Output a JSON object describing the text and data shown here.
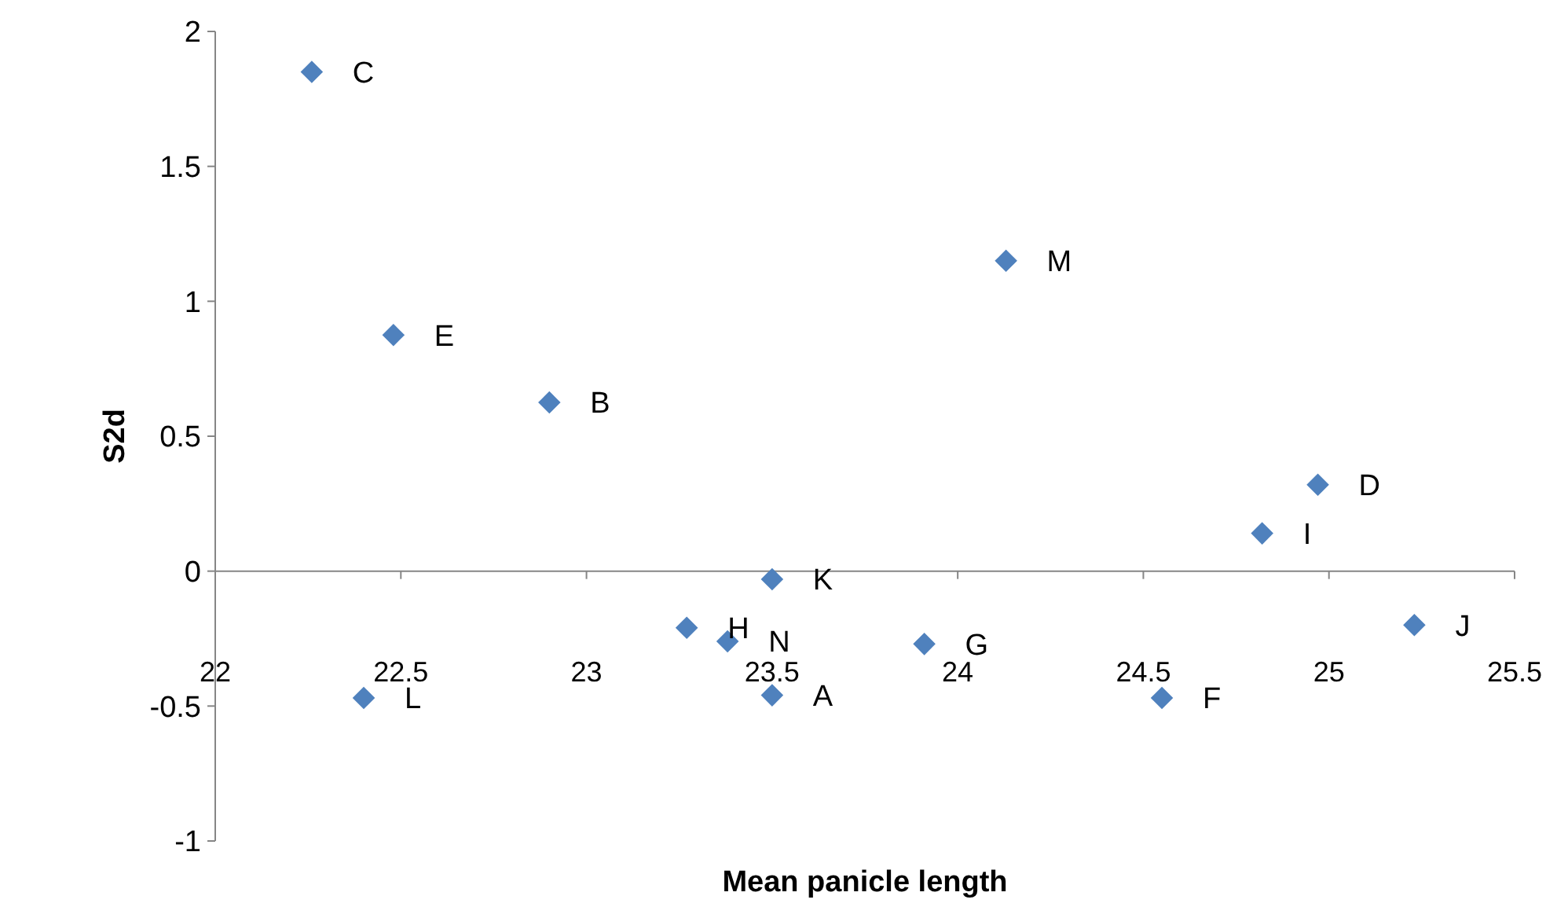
{
  "chart_data": {
    "type": "scatter",
    "xlabel": "Mean panicle length",
    "ylabel": "S2d",
    "xlim": [
      22,
      25.5
    ],
    "xticks": [
      22,
      22.5,
      23,
      23.5,
      24,
      24.5,
      25,
      25.5
    ],
    "ylim": [
      -1,
      2
    ],
    "yticks": [
      -1,
      -0.5,
      0,
      0.5,
      1,
      1.5,
      2
    ],
    "marker": "diamond",
    "series": [
      {
        "color": "#4f81bd",
        "x": [
          23.5,
          22.9,
          22.26,
          24.97,
          22.48,
          24.55,
          23.91,
          23.27,
          24.82,
          25.23,
          23.5,
          22.4,
          24.13,
          23.38
        ],
        "values": [
          -0.46,
          0.625,
          1.85,
          0.32,
          0.875,
          -0.47,
          -0.27,
          -0.21,
          0.14,
          -0.2,
          -0.03,
          -0.47,
          1.15,
          -0.26
        ]
      }
    ],
    "annotations": [
      {
        "text": "A",
        "x": 23.5,
        "y": -0.46
      },
      {
        "text": "B",
        "x": 22.9,
        "y": 0.625
      },
      {
        "text": "C",
        "x": 22.26,
        "y": 1.85
      },
      {
        "text": "D",
        "x": 24.97,
        "y": 0.32
      },
      {
        "text": "E",
        "x": 22.48,
        "y": 0.875
      },
      {
        "text": "F",
        "x": 24.55,
        "y": -0.47
      },
      {
        "text": "G",
        "x": 23.91,
        "y": -0.27
      },
      {
        "text": "H",
        "x": 23.27,
        "y": -0.21
      },
      {
        "text": "I",
        "x": 24.82,
        "y": 0.14
      },
      {
        "text": "J",
        "x": 25.23,
        "y": -0.2
      },
      {
        "text": "K",
        "x": 23.5,
        "y": -0.03
      },
      {
        "text": "L",
        "x": 22.4,
        "y": -0.47
      },
      {
        "text": "M",
        "x": 24.13,
        "y": 1.15
      },
      {
        "text": "N",
        "x": 23.38,
        "y": -0.26
      }
    ]
  }
}
